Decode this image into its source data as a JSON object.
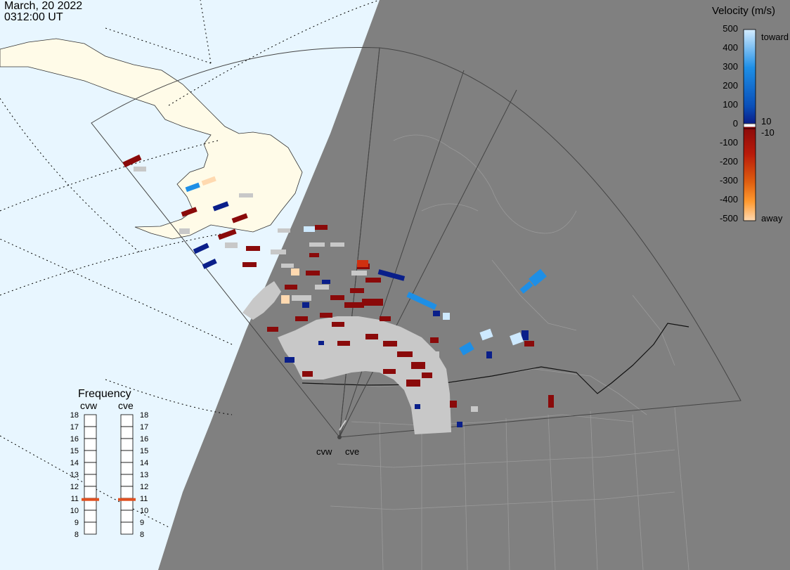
{
  "header": {
    "date": "March, 20 2022",
    "time": "0312:00 UT"
  },
  "velocity_legend": {
    "title": "Velocity (m/s)",
    "ticks": [
      "500",
      "400",
      "300",
      "200",
      "100",
      "0",
      "-100",
      "-200",
      "-300",
      "-400",
      "-500"
    ],
    "toward_label": "toward",
    "away_label": "away",
    "plus_threshold": "10",
    "minus_threshold": "-10",
    "colors": {
      "toward_high": "#cde9ff",
      "toward_mid": "#1e8fe6",
      "toward_low": "#0a1f8a",
      "away_low": "#8a0a0a",
      "away_mid": "#e06010",
      "away_high": "#ffd9b0",
      "ground_scatter": "#c8c8c8"
    }
  },
  "frequency_panel": {
    "title": "Frequency",
    "radars": [
      {
        "name": "cvw",
        "frequency_mhz": 10.9
      },
      {
        "name": "cve",
        "frequency_mhz": 10.9
      }
    ],
    "scale": [
      "18",
      "17",
      "16",
      "15",
      "14",
      "13",
      "12",
      "11",
      "10",
      "9",
      "8"
    ],
    "marker_color": "#e05020"
  },
  "radar_sites": [
    {
      "name": "cvw"
    },
    {
      "name": "cve"
    }
  ],
  "map_colors": {
    "ocean_day": "#e8f6ff",
    "land_day": "#fffbe8",
    "night": "#808080",
    "night_borders": "#9a9a9a",
    "fov_outline": "#444444"
  }
}
